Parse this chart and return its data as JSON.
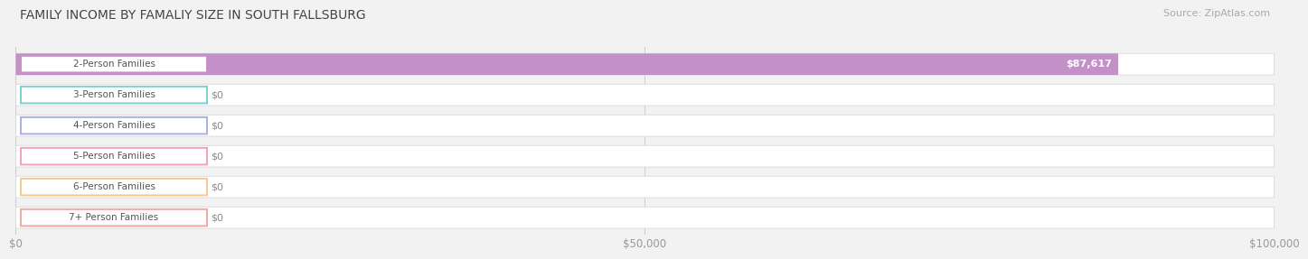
{
  "title": "FAMILY INCOME BY FAMALIY SIZE IN SOUTH FALLSBURG",
  "source": "Source: ZipAtlas.com",
  "categories": [
    "2-Person Families",
    "3-Person Families",
    "4-Person Families",
    "5-Person Families",
    "6-Person Families",
    "7+ Person Families"
  ],
  "values": [
    87617,
    0,
    0,
    0,
    0,
    0
  ],
  "bar_colors": [
    "#c490c8",
    "#7ecece",
    "#aab0e0",
    "#f5a0b8",
    "#f5c890",
    "#f0a8a0"
  ],
  "value_labels": [
    "$87,617",
    "$0",
    "$0",
    "$0",
    "$0",
    "$0"
  ],
  "xlim": [
    0,
    100000
  ],
  "xticks": [
    0,
    50000,
    100000
  ],
  "xtick_labels": [
    "$0",
    "$50,000",
    "$100,000"
  ],
  "background_color": "#f2f2f2",
  "bar_bg_color": "#ffffff",
  "title_fontsize": 10,
  "source_fontsize": 8,
  "label_fontsize": 7.5,
  "value_fontsize": 8
}
